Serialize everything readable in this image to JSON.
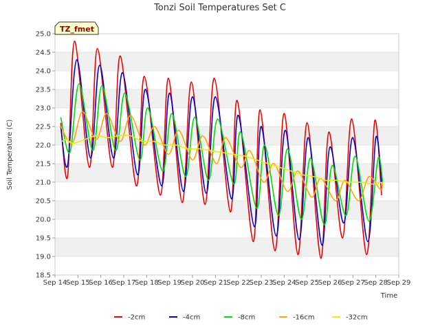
{
  "chart_data": {
    "type": "line",
    "title": "Tonzi Soil Temperatures Set C",
    "xlabel": "Time",
    "ylabel": "Soil Temperature (C)",
    "badge": "TZ_fmet",
    "xlim": [
      14,
      29
    ],
    "ylim": [
      18.5,
      25.0
    ],
    "grid": "alternating horizontal bands",
    "legend_position": "bottom",
    "x_ticks": [
      {
        "v": 14,
        "label": "Sep 14"
      },
      {
        "v": 15,
        "label": "Sep 15"
      },
      {
        "v": 16,
        "label": "Sep 16"
      },
      {
        "v": 17,
        "label": "Sep 17"
      },
      {
        "v": 18,
        "label": "Sep 18"
      },
      {
        "v": 19,
        "label": "Sep 19"
      },
      {
        "v": 20,
        "label": "Sep 20"
      },
      {
        "v": 21,
        "label": "Sep 21"
      },
      {
        "v": 22,
        "label": "Sep 22"
      },
      {
        "v": 23,
        "label": "Sep 23"
      },
      {
        "v": 24,
        "label": "Sep 24"
      },
      {
        "v": 25,
        "label": "Sep 25"
      },
      {
        "v": 26,
        "label": "Sep 26"
      },
      {
        "v": 27,
        "label": "Sep 27"
      },
      {
        "v": 28,
        "label": "Sep 28"
      },
      {
        "v": 29,
        "label": "Sep 29"
      }
    ],
    "y_ticks": [
      {
        "v": 18.5,
        "label": "18.5"
      },
      {
        "v": 19.0,
        "label": "19.0"
      },
      {
        "v": 19.5,
        "label": "19.5"
      },
      {
        "v": 20.0,
        "label": "20.0"
      },
      {
        "v": 20.5,
        "label": "20.5"
      },
      {
        "v": 21.0,
        "label": "21.0"
      },
      {
        "v": 21.5,
        "label": "21.5"
      },
      {
        "v": 22.0,
        "label": "22.0"
      },
      {
        "v": 22.5,
        "label": "22.5"
      },
      {
        "v": 23.0,
        "label": "23.0"
      },
      {
        "v": 23.5,
        "label": "23.5"
      },
      {
        "v": 24.0,
        "label": "24.0"
      },
      {
        "v": 24.5,
        "label": "24.5"
      },
      {
        "v": 25.0,
        "label": "25.0"
      }
    ],
    "series": [
      {
        "name": "-2cm",
        "color": "#ee0000",
        "points": [
          [
            14.25,
            22.6
          ],
          [
            14.55,
            21.15
          ],
          [
            14.85,
            24.8
          ],
          [
            15.5,
            21.4
          ],
          [
            15.85,
            24.6
          ],
          [
            16.5,
            21.4
          ],
          [
            16.85,
            24.4
          ],
          [
            17.55,
            20.9
          ],
          [
            17.9,
            23.85
          ],
          [
            18.6,
            20.65
          ],
          [
            18.95,
            23.8
          ],
          [
            19.55,
            20.45
          ],
          [
            19.95,
            23.7
          ],
          [
            20.55,
            20.4
          ],
          [
            20.95,
            23.8
          ],
          [
            21.65,
            20.2
          ],
          [
            21.95,
            23.2
          ],
          [
            22.65,
            19.4
          ],
          [
            22.95,
            22.95
          ],
          [
            23.6,
            19.15
          ],
          [
            24.0,
            22.85
          ],
          [
            24.6,
            19.05
          ],
          [
            25.0,
            22.6
          ],
          [
            25.6,
            18.95
          ],
          [
            25.95,
            22.35
          ],
          [
            26.55,
            19.5
          ],
          [
            26.95,
            22.7
          ],
          [
            27.6,
            19.05
          ],
          [
            27.95,
            22.65
          ],
          [
            28.25,
            20.65
          ]
        ]
      },
      {
        "name": "-4cm",
        "color": "#0000cc",
        "points": [
          [
            14.25,
            22.5
          ],
          [
            14.55,
            21.45
          ],
          [
            14.95,
            24.3
          ],
          [
            15.55,
            21.65
          ],
          [
            15.95,
            24.15
          ],
          [
            16.55,
            21.65
          ],
          [
            16.95,
            23.95
          ],
          [
            17.6,
            21.2
          ],
          [
            17.95,
            23.5
          ],
          [
            18.65,
            20.9
          ],
          [
            19.0,
            23.4
          ],
          [
            19.6,
            20.75
          ],
          [
            20.0,
            23.3
          ],
          [
            20.6,
            20.7
          ],
          [
            21.0,
            23.3
          ],
          [
            21.7,
            20.55
          ],
          [
            22.0,
            22.8
          ],
          [
            22.7,
            19.8
          ],
          [
            23.0,
            22.5
          ],
          [
            23.65,
            19.55
          ],
          [
            24.05,
            22.4
          ],
          [
            24.65,
            19.45
          ],
          [
            25.05,
            22.2
          ],
          [
            25.65,
            19.3
          ],
          [
            26.0,
            21.95
          ],
          [
            26.6,
            19.9
          ],
          [
            27.0,
            22.2
          ],
          [
            27.65,
            19.4
          ],
          [
            28.0,
            22.2
          ],
          [
            28.25,
            21.0
          ]
        ]
      },
      {
        "name": "-8cm",
        "color": "#00dd00",
        "points": [
          [
            14.25,
            22.75
          ],
          [
            14.65,
            21.8
          ],
          [
            15.05,
            23.65
          ],
          [
            15.65,
            21.85
          ],
          [
            16.05,
            23.6
          ],
          [
            16.65,
            21.85
          ],
          [
            17.05,
            23.4
          ],
          [
            17.7,
            21.6
          ],
          [
            18.05,
            23.0
          ],
          [
            18.7,
            21.3
          ],
          [
            19.1,
            22.85
          ],
          [
            19.7,
            21.15
          ],
          [
            20.1,
            22.75
          ],
          [
            20.7,
            21.05
          ],
          [
            21.1,
            22.7
          ],
          [
            21.8,
            20.95
          ],
          [
            22.1,
            22.35
          ],
          [
            22.8,
            20.3
          ],
          [
            23.15,
            22.0
          ],
          [
            23.75,
            20.1
          ],
          [
            24.15,
            21.9
          ],
          [
            24.75,
            20.0
          ],
          [
            25.15,
            21.65
          ],
          [
            25.75,
            19.85
          ],
          [
            26.1,
            21.45
          ],
          [
            26.7,
            20.1
          ],
          [
            27.1,
            21.7
          ],
          [
            27.7,
            19.95
          ],
          [
            28.1,
            21.65
          ],
          [
            28.3,
            21.0
          ]
        ]
      },
      {
        "name": "-16cm",
        "color": "#ffa500",
        "points": [
          [
            14.25,
            22.5
          ],
          [
            14.75,
            22.05
          ],
          [
            15.2,
            22.9
          ],
          [
            15.8,
            22.15
          ],
          [
            16.25,
            22.85
          ],
          [
            16.85,
            22.1
          ],
          [
            17.3,
            22.8
          ],
          [
            17.9,
            22.0
          ],
          [
            18.35,
            22.5
          ],
          [
            18.95,
            21.75
          ],
          [
            19.4,
            22.4
          ],
          [
            20.0,
            21.6
          ],
          [
            20.45,
            22.25
          ],
          [
            21.05,
            21.5
          ],
          [
            21.45,
            22.2
          ],
          [
            22.1,
            21.4
          ],
          [
            22.5,
            21.85
          ],
          [
            23.1,
            21.0
          ],
          [
            23.55,
            21.5
          ],
          [
            24.15,
            20.75
          ],
          [
            24.6,
            21.3
          ],
          [
            25.2,
            20.6
          ],
          [
            25.6,
            21.1
          ],
          [
            26.25,
            20.5
          ],
          [
            26.65,
            21.05
          ],
          [
            27.25,
            20.5
          ],
          [
            27.7,
            21.15
          ],
          [
            28.2,
            20.8
          ],
          [
            28.3,
            21.0
          ]
        ]
      },
      {
        "name": "-32cm",
        "color": "#eeee00",
        "points": [
          [
            14.3,
            22.1
          ],
          [
            14.5,
            22.15
          ],
          [
            14.8,
            22.05
          ],
          [
            15.3,
            22.15
          ],
          [
            15.8,
            22.25
          ],
          [
            16.3,
            22.2
          ],
          [
            16.8,
            22.25
          ],
          [
            17.3,
            22.25
          ],
          [
            17.8,
            22.1
          ],
          [
            18.3,
            22.1
          ],
          [
            18.8,
            22.0
          ],
          [
            19.3,
            22.0
          ],
          [
            19.8,
            21.9
          ],
          [
            20.3,
            21.9
          ],
          [
            20.8,
            21.85
          ],
          [
            21.3,
            21.8
          ],
          [
            21.8,
            21.75
          ],
          [
            22.3,
            21.7
          ],
          [
            22.8,
            21.6
          ],
          [
            23.3,
            21.5
          ],
          [
            23.8,
            21.4
          ],
          [
            24.3,
            21.3
          ],
          [
            24.8,
            21.2
          ],
          [
            25.3,
            21.15
          ],
          [
            25.8,
            21.05
          ],
          [
            26.3,
            21.05
          ],
          [
            26.8,
            21.0
          ],
          [
            27.3,
            21.0
          ],
          [
            27.8,
            20.95
          ],
          [
            28.3,
            21.0
          ]
        ]
      }
    ]
  }
}
